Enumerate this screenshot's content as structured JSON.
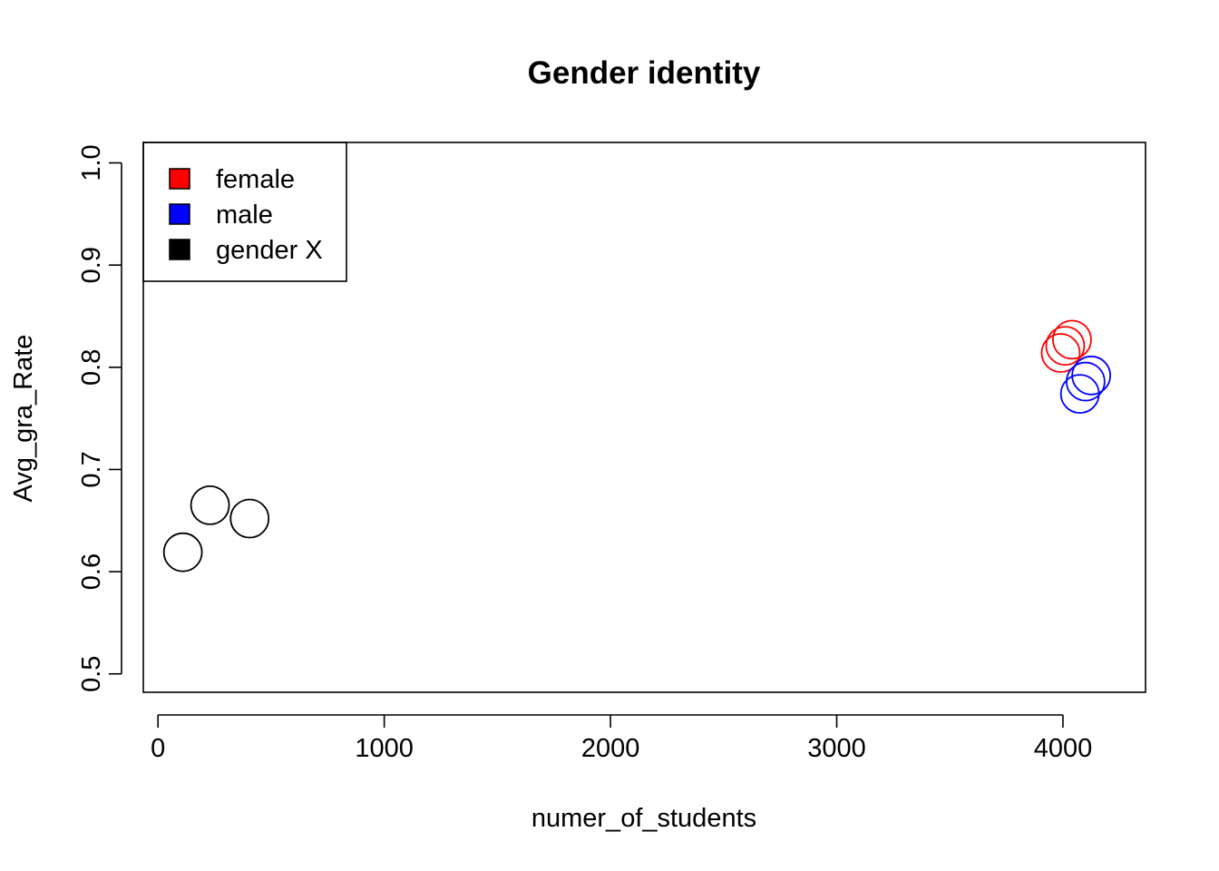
{
  "chart_data": {
    "type": "scatter",
    "title": "Gender identity",
    "xlabel": "numer_of_students",
    "ylabel": "Avg_gra_Rate",
    "xlim": [
      -65,
      4365
    ],
    "ylim": [
      0.482,
      1.02
    ],
    "x_ticks": [
      0,
      1000,
      2000,
      3000,
      4000
    ],
    "x_tick_labels": [
      "0",
      "1000",
      "2000",
      "3000",
      "4000"
    ],
    "y_ticks": [
      0.5,
      0.6,
      0.7,
      0.8,
      0.9,
      1.0
    ],
    "y_tick_labels": [
      "0.5",
      "0.6",
      "0.7",
      "0.8",
      "0.9",
      "1.0"
    ],
    "grid": false,
    "legend_position": "top-left",
    "marker": "open-circle",
    "series": [
      {
        "name": "female",
        "color": "#ff0000",
        "points": [
          {
            "x": 3990,
            "y": 0.814
          },
          {
            "x": 4010,
            "y": 0.821
          },
          {
            "x": 4040,
            "y": 0.827
          }
        ]
      },
      {
        "name": "male",
        "color": "#0000ff",
        "points": [
          {
            "x": 4075,
            "y": 0.774
          },
          {
            "x": 4100,
            "y": 0.786
          },
          {
            "x": 4125,
            "y": 0.792
          }
        ]
      },
      {
        "name": "gender X",
        "color": "#000000",
        "points": [
          {
            "x": 110,
            "y": 0.619
          },
          {
            "x": 230,
            "y": 0.665
          },
          {
            "x": 405,
            "y": 0.652
          }
        ]
      }
    ]
  }
}
